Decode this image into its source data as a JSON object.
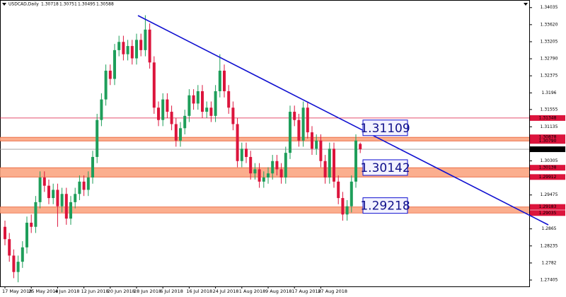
{
  "chart_data": {
    "type": "candlestick",
    "title": "USDCAD,Daily",
    "header_values": [
      1.30718,
      1.30751,
      1.30495,
      1.30588
    ],
    "up_color": "#1e9e5a",
    "down_color": "#dc143c",
    "ylim": [
      1.2725,
      1.3422
    ],
    "yticks": [
      1.34035,
      {
        "value": 1.3362,
        "label": "1.33620"
      },
      1.33205,
      {
        "value": 1.3279,
        "label": "1.32790"
      },
      1.32375,
      1.3196,
      1.31555,
      1.31135,
      1.30305,
      1.29475,
      1.2865,
      1.28235,
      1.2782,
      1.27405
    ],
    "categories": [
      "17 May 2018",
      null,
      null,
      null,
      null,
      null,
      "25 May 2018",
      null,
      null,
      null,
      null,
      null,
      "4 Jun 2018",
      null,
      null,
      null,
      null,
      null,
      "12 Jun 2018",
      null,
      null,
      null,
      null,
      null,
      "20 Jun 2018",
      null,
      null,
      null,
      null,
      null,
      "28 Jun 2018",
      null,
      null,
      null,
      null,
      null,
      "6 Jul 2018",
      null,
      null,
      null,
      null,
      null,
      "16 Jul 2018",
      null,
      null,
      null,
      null,
      null,
      "24 Jul 2018",
      null,
      null,
      null,
      null,
      null,
      "1 Aug 2018",
      null,
      null,
      null,
      null,
      null,
      "9 Aug 2018",
      null,
      null,
      null,
      null,
      null,
      "17 Aug 2018",
      null,
      null,
      null,
      null,
      null,
      "27 Aug 2018",
      null,
      null,
      null,
      null,
      null,
      null,
      null,
      null,
      null
    ],
    "values": [
      [
        1.287,
        1.2885,
        1.2825,
        1.284
      ],
      [
        1.284,
        1.2855,
        1.2785,
        1.28
      ],
      [
        1.28,
        1.2815,
        1.2745,
        1.276
      ],
      [
        1.276,
        1.28,
        1.2735,
        1.2785
      ],
      [
        1.2785,
        1.2835,
        1.277,
        1.282
      ],
      [
        1.282,
        1.2895,
        1.2805,
        1.288
      ],
      [
        1.288,
        1.29,
        1.2855,
        1.287
      ],
      [
        1.287,
        1.2945,
        1.2855,
        1.293
      ],
      [
        1.293,
        1.3005,
        1.2915,
        1.299
      ],
      [
        1.299,
        1.3005,
        1.2955,
        1.297
      ],
      [
        1.297,
        1.2985,
        1.2925,
        1.294
      ],
      [
        1.294,
        1.2975,
        1.2925,
        1.296
      ],
      [
        1.296,
        1.2975,
        1.287,
        1.292
      ],
      [
        1.292,
        1.2965,
        1.2905,
        1.295
      ],
      [
        1.295,
        1.2965,
        1.2875,
        1.289
      ],
      [
        1.289,
        1.2945,
        1.2875,
        1.293
      ],
      [
        1.293,
        1.2965,
        1.2915,
        1.295
      ],
      [
        1.295,
        1.2995,
        1.2935,
        1.298
      ],
      [
        1.298,
        1.2995,
        1.2945,
        1.296
      ],
      [
        1.296,
        1.3005,
        1.2945,
        1.299
      ],
      [
        1.299,
        1.3055,
        1.2975,
        1.304
      ],
      [
        1.304,
        1.3145,
        1.3025,
        1.313
      ],
      [
        1.313,
        1.3195,
        1.3115,
        1.318
      ],
      [
        1.318,
        1.3265,
        1.3165,
        1.325
      ],
      [
        1.325,
        1.3265,
        1.3215,
        1.323
      ],
      [
        1.323,
        1.3315,
        1.3215,
        1.33
      ],
      [
        1.33,
        1.3335,
        1.3285,
        1.332
      ],
      [
        1.332,
        1.3335,
        1.3275,
        1.329
      ],
      [
        1.329,
        1.3325,
        1.3275,
        1.331
      ],
      [
        1.331,
        1.3325,
        1.3265,
        1.328
      ],
      [
        1.328,
        1.334,
        1.3265,
        1.3325
      ],
      [
        1.3325,
        1.334,
        1.3285,
        1.33
      ],
      [
        1.33,
        1.3385,
        1.3285,
        1.335
      ],
      [
        1.335,
        1.3365,
        1.3255,
        1.327
      ],
      [
        1.327,
        1.3285,
        1.3145,
        1.316
      ],
      [
        1.316,
        1.3175,
        1.3115,
        1.313
      ],
      [
        1.313,
        1.3195,
        1.3115,
        1.318
      ],
      [
        1.318,
        1.3195,
        1.3135,
        1.315
      ],
      [
        1.315,
        1.3165,
        1.3105,
        1.312
      ],
      [
        1.312,
        1.3135,
        1.3065,
        1.308
      ],
      [
        1.308,
        1.3125,
        1.3065,
        1.311
      ],
      [
        1.311,
        1.3155,
        1.3095,
        1.314
      ],
      [
        1.314,
        1.3205,
        1.3125,
        1.319
      ],
      [
        1.319,
        1.3205,
        1.3155,
        1.317
      ],
      [
        1.317,
        1.3215,
        1.3155,
        1.32
      ],
      [
        1.32,
        1.3215,
        1.3135,
        1.315
      ],
      [
        1.315,
        1.3175,
        1.3135,
        1.316
      ],
      [
        1.316,
        1.3175,
        1.3125,
        1.314
      ],
      [
        1.314,
        1.3215,
        1.3125,
        1.32
      ],
      [
        1.32,
        1.329,
        1.3185,
        1.325
      ],
      [
        1.325,
        1.3265,
        1.3185,
        1.32
      ],
      [
        1.32,
        1.3215,
        1.3145,
        1.316
      ],
      [
        1.316,
        1.3175,
        1.3105,
        1.312
      ],
      [
        1.312,
        1.3135,
        1.3015,
        1.303
      ],
      [
        1.303,
        1.3075,
        1.3015,
        1.306
      ],
      [
        1.306,
        1.3075,
        1.3025,
        1.304
      ],
      [
        1.304,
        1.3055,
        1.2985,
        1.3
      ],
      [
        1.3,
        1.3025,
        1.2985,
        1.301
      ],
      [
        1.301,
        1.3025,
        1.2965,
        1.298
      ],
      [
        1.298,
        1.3005,
        1.2965,
        1.299
      ],
      [
        1.299,
        1.3015,
        1.2975,
        1.3
      ],
      [
        1.3,
        1.3045,
        1.2985,
        1.303
      ],
      [
        1.303,
        1.3045,
        1.2995,
        1.301
      ],
      [
        1.301,
        1.3025,
        1.2975,
        1.299
      ],
      [
        1.299,
        1.3065,
        1.2975,
        1.305
      ],
      [
        1.305,
        1.3165,
        1.3035,
        1.315
      ],
      [
        1.315,
        1.3165,
        1.3115,
        1.313
      ],
      [
        1.313,
        1.3145,
        1.3065,
        1.308
      ],
      [
        1.308,
        1.3175,
        1.3065,
        1.316
      ],
      [
        1.316,
        1.3175,
        1.3085,
        1.31
      ],
      [
        1.31,
        1.3115,
        1.3045,
        1.306
      ],
      [
        1.306,
        1.3095,
        1.3045,
        1.308
      ],
      [
        1.308,
        1.3095,
        1.3015,
        1.303
      ],
      [
        1.303,
        1.3045,
        1.2975,
        1.299
      ],
      [
        1.299,
        1.3075,
        1.2975,
        1.306
      ],
      [
        1.306,
        1.3075,
        1.2965,
        1.298
      ],
      [
        1.298,
        1.2995,
        1.2925,
        1.294
      ],
      [
        1.294,
        1.2955,
        1.2885,
        1.29
      ],
      [
        1.29,
        1.2935,
        1.2885,
        1.292
      ],
      [
        1.292,
        1.2995,
        1.2905,
        1.298
      ],
      [
        1.298,
        1.3095,
        1.2965,
        1.308
      ],
      [
        1.30718,
        1.30751,
        1.30495,
        1.30588
      ]
    ],
    "zones": [
      [
        1.30878,
        {
          "value": 1.3079,
          "label": "1.30790"
        }
      ],
      [
        1.30138,
        1.29912
      ],
      [
        1.29183,
        1.29035
      ]
    ],
    "resistance": 1.31348,
    "current_price": 1.30588,
    "annotations": [
      1.31109,
      1.30142,
      1.29218
    ]
  }
}
